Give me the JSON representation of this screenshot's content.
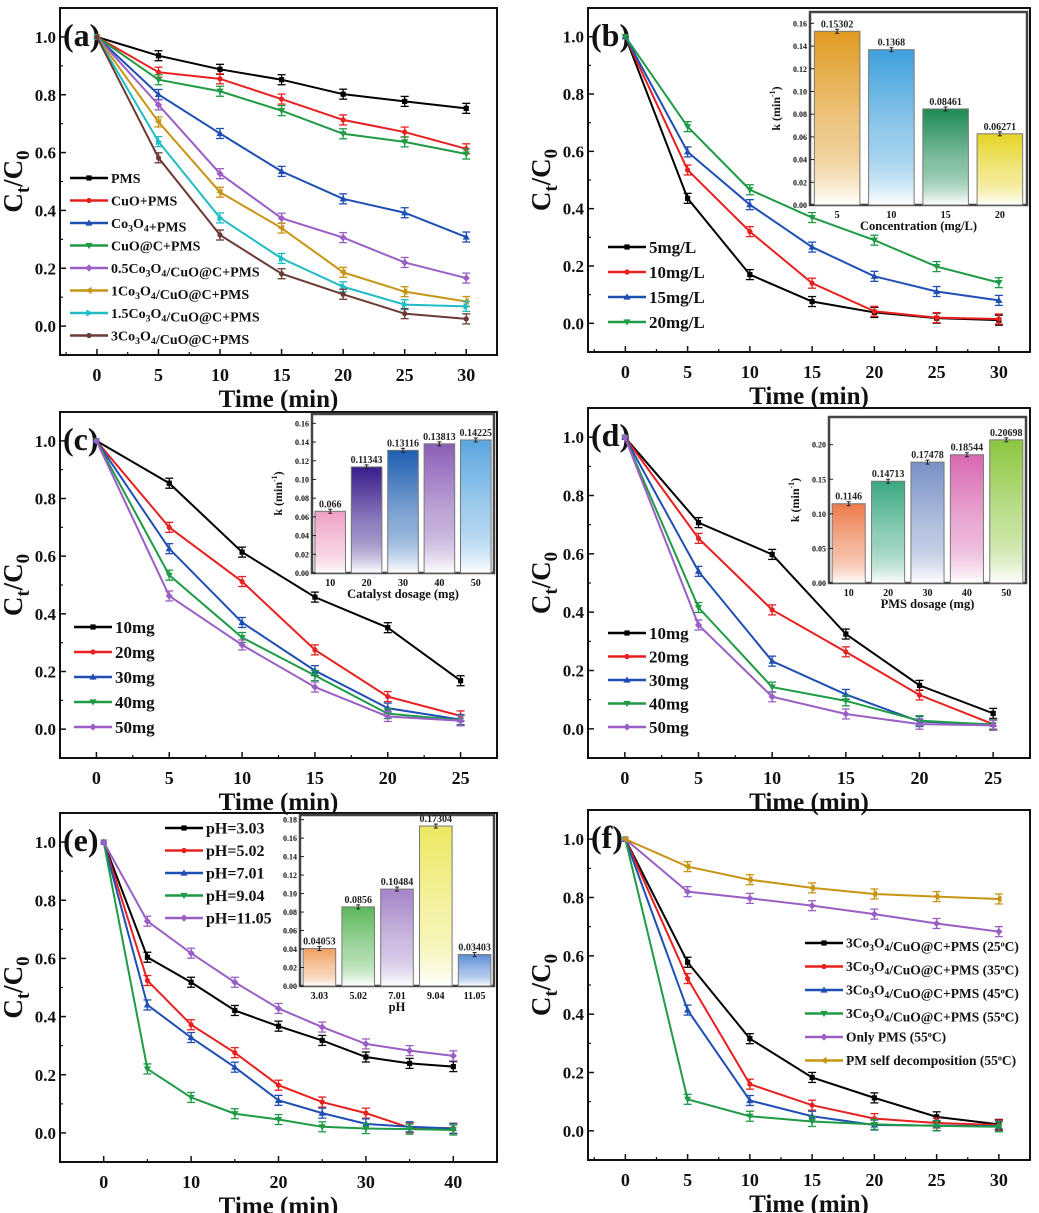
{
  "figure": {
    "panel_labels": [
      "(a)",
      "(b)",
      "(c)",
      "(d)",
      "(e)",
      "(f)"
    ]
  },
  "chart_data": [
    {
      "panel": "(a)",
      "type": "line",
      "title": "",
      "xlabel": "Time (min)",
      "ylabel": "Ct/C0",
      "xlim": [
        -3,
        32.5
      ],
      "ylim": [
        -0.1,
        1.1
      ],
      "xticks": [
        0,
        5,
        10,
        15,
        20,
        25,
        30
      ],
      "yticks": [
        0.0,
        0.2,
        0.4,
        0.6,
        0.8,
        1.0
      ],
      "x": [
        0,
        5,
        10,
        15,
        20,
        25,
        30
      ],
      "legend_position": "lower-left",
      "series": [
        {
          "name": "PMS",
          "color": "#000000",
          "marker": "square",
          "values": [
            1.0,
            0.935,
            0.888,
            0.852,
            0.802,
            0.777,
            0.753
          ]
        },
        {
          "name": "CuO+PMS",
          "color": "#e8201f",
          "marker": "circle",
          "values": [
            1.0,
            0.878,
            0.855,
            0.785,
            0.713,
            0.671,
            0.613
          ]
        },
        {
          "name": "Co3O4+PMS",
          "color": "#1f4fb4",
          "marker": "triangle-up",
          "values": [
            1.0,
            0.801,
            0.666,
            0.535,
            0.44,
            0.392,
            0.308
          ]
        },
        {
          "name": "CuO@C+PMS",
          "color": "#1f9a45",
          "marker": "triangle-down",
          "values": [
            1.0,
            0.852,
            0.812,
            0.745,
            0.665,
            0.637,
            0.595
          ]
        },
        {
          "name": "0.5Co3O4/CuO@C+PMS",
          "color": "#9a5fc4",
          "marker": "diamond",
          "values": [
            1.0,
            0.765,
            0.527,
            0.373,
            0.306,
            0.22,
            0.166
          ]
        },
        {
          "name": "1Co3O4/CuO@C+PMS",
          "color": "#c79414",
          "marker": "triangle-left",
          "values": [
            1.0,
            0.706,
            0.463,
            0.339,
            0.186,
            0.119,
            0.085
          ]
        },
        {
          "name": "1.5Co3O4/CuO@C+PMS",
          "color": "#1fbcc4",
          "marker": "triangle-right",
          "values": [
            1.0,
            0.638,
            0.374,
            0.234,
            0.136,
            0.074,
            0.068
          ]
        },
        {
          "name": "3Co3O4/CuO@C+PMS",
          "color": "#6b3a35",
          "marker": "hexagon",
          "values": [
            1.0,
            0.582,
            0.315,
            0.181,
            0.11,
            0.043,
            0.025
          ]
        }
      ]
    },
    {
      "panel": "(b)",
      "type": "line",
      "title": "",
      "xlabel": "Time (min)",
      "ylabel": "Ct/C0",
      "xlim": [
        -3,
        32.5
      ],
      "ylim": [
        -0.1,
        1.1
      ],
      "xticks": [
        0,
        5,
        10,
        15,
        20,
        25,
        30
      ],
      "yticks": [
        0.0,
        0.2,
        0.4,
        0.6,
        0.8,
        1.0
      ],
      "x": [
        0,
        5,
        10,
        15,
        20,
        25,
        30
      ],
      "legend_position": "lower-left",
      "series": [
        {
          "name": "5mg/L",
          "color": "#000000",
          "marker": "square",
          "values": [
            1.0,
            0.436,
            0.17,
            0.076,
            0.038,
            0.018,
            0.011
          ]
        },
        {
          "name": "10mg/L",
          "color": "#e8201f",
          "marker": "circle",
          "values": [
            1.0,
            0.535,
            0.32,
            0.14,
            0.042,
            0.02,
            0.015
          ]
        },
        {
          "name": "15mg/L",
          "color": "#1f4fb4",
          "marker": "triangle-up",
          "values": [
            1.0,
            0.598,
            0.414,
            0.266,
            0.164,
            0.111,
            0.08
          ]
        },
        {
          "name": "20mg/L",
          "color": "#1f9a45",
          "marker": "triangle-down",
          "values": [
            1.0,
            0.686,
            0.466,
            0.369,
            0.29,
            0.198,
            0.142
          ]
        }
      ],
      "inset": {
        "type": "bar",
        "xlabel": "Concentration (mg/L)",
        "ylabel": "k (min-1)",
        "ylim": [
          0,
          0.17
        ],
        "yticks": [
          "0.00",
          "0.02",
          "0.04",
          "0.06",
          "0.08",
          "0.10",
          "0.12",
          "0.14",
          "0.16"
        ],
        "categories": [
          "5",
          "10",
          "15",
          "20"
        ],
        "values": [
          0.15302,
          0.1368,
          0.08461,
          0.06271
        ],
        "labels": [
          "0.15302",
          "0.1368",
          "0.08461",
          "0.06271"
        ],
        "colors": [
          "#e09a22",
          "#3fa0dc",
          "#1e8a55",
          "#e6d426"
        ]
      }
    },
    {
      "panel": "(c)",
      "type": "line",
      "title": "",
      "xlabel": "Time (min)",
      "ylabel": "Ct/C0",
      "xlim": [
        -2.5,
        27.5
      ],
      "ylim": [
        -0.1,
        1.1
      ],
      "xticks": [
        0,
        5,
        10,
        15,
        20,
        25
      ],
      "yticks": [
        0.0,
        0.2,
        0.4,
        0.6,
        0.8,
        1.0
      ],
      "x": [
        0,
        5,
        10,
        15,
        20,
        25
      ],
      "legend_position": "lower-left",
      "series": [
        {
          "name": "10mg",
          "color": "#000000",
          "marker": "square",
          "values": [
            1.0,
            0.853,
            0.614,
            0.458,
            0.352,
            0.168
          ]
        },
        {
          "name": "20mg",
          "color": "#e8201f",
          "marker": "circle",
          "values": [
            1.0,
            0.7,
            0.512,
            0.275,
            0.113,
            0.046
          ]
        },
        {
          "name": "30mg",
          "color": "#1f4fb4",
          "marker": "triangle-up",
          "values": [
            1.0,
            0.626,
            0.37,
            0.203,
            0.073,
            0.033
          ]
        },
        {
          "name": "40mg",
          "color": "#1f9a45",
          "marker": "triangle-down",
          "values": [
            1.0,
            0.534,
            0.318,
            0.186,
            0.054,
            0.031
          ]
        },
        {
          "name": "50mg",
          "color": "#9a5fc4",
          "marker": "diamond",
          "values": [
            1.0,
            0.462,
            0.292,
            0.146,
            0.044,
            0.029
          ]
        }
      ],
      "inset": {
        "type": "bar",
        "xlabel": "Catalyst dosage (mg)",
        "ylabel": "k (min-1)",
        "ylim": [
          0,
          0.17
        ],
        "yticks": [
          "0.00",
          "0.02",
          "0.04",
          "0.06",
          "0.08",
          "0.10",
          "0.12",
          "0.14",
          "0.16"
        ],
        "categories": [
          "10",
          "20",
          "30",
          "40",
          "50"
        ],
        "values": [
          0.066,
          0.11343,
          0.13116,
          0.13813,
          0.14225
        ],
        "labels": [
          "0.066",
          "0.11343",
          "0.13116",
          "0.13813",
          "0.14225"
        ],
        "colors": [
          "#ee9fc4",
          "#3a1c8c",
          "#1e5fb0",
          "#8a5fb6",
          "#5aa6e0"
        ]
      }
    },
    {
      "panel": "(d)",
      "type": "line",
      "title": "",
      "xlabel": "Time (min)",
      "ylabel": "Ct/C0",
      "xlim": [
        -2.5,
        27.5
      ],
      "ylim": [
        -0.1,
        1.1
      ],
      "xticks": [
        0,
        5,
        10,
        15,
        20,
        25
      ],
      "yticks": [
        0.0,
        0.2,
        0.4,
        0.6,
        0.8,
        1.0
      ],
      "x": [
        0,
        5,
        10,
        15,
        20,
        25
      ],
      "legend_position": "lower-left",
      "series": [
        {
          "name": "10mg",
          "color": "#000000",
          "marker": "square",
          "values": [
            1.0,
            0.707,
            0.598,
            0.325,
            0.149,
            0.053
          ]
        },
        {
          "name": "20mg",
          "color": "#e8201f",
          "marker": "circle",
          "values": [
            1.0,
            0.653,
            0.408,
            0.264,
            0.116,
            0.016
          ]
        },
        {
          "name": "30mg",
          "color": "#1f4fb4",
          "marker": "triangle-up",
          "values": [
            1.0,
            0.54,
            0.232,
            0.118,
            0.025,
            0.015
          ]
        },
        {
          "name": "40mg",
          "color": "#1f9a45",
          "marker": "triangle-down",
          "values": [
            1.0,
            0.416,
            0.143,
            0.096,
            0.028,
            0.014
          ]
        },
        {
          "name": "50mg",
          "color": "#9a5fc4",
          "marker": "diamond",
          "values": [
            1.0,
            0.356,
            0.11,
            0.051,
            0.016,
            0.012
          ]
        }
      ],
      "inset": {
        "type": "bar",
        "xlabel": "PMS dosage (mg)",
        "ylabel": "k (min-1)",
        "ylim": [
          0,
          0.24
        ],
        "yticks": [
          "0.00",
          "0.05",
          "0.10",
          "0.15",
          "0.20"
        ],
        "categories": [
          "10",
          "20",
          "30",
          "40",
          "50"
        ],
        "values": [
          0.1146,
          0.14713,
          0.17478,
          0.18544,
          0.20698
        ],
        "labels": [
          "0.1146",
          "0.14713",
          "0.17478",
          "0.18544",
          "0.20698"
        ],
        "colors": [
          "#ec7a4a",
          "#3aa880",
          "#7890c6",
          "#d868b0",
          "#8cc63e"
        ]
      }
    },
    {
      "panel": "(e)",
      "type": "line",
      "title": "",
      "xlabel": "Time (min)",
      "ylabel": "Ct/C0",
      "xlim": [
        -5,
        45
      ],
      "ylim": [
        -0.1,
        1.1
      ],
      "xticks": [
        0,
        10,
        20,
        30,
        40
      ],
      "yticks": [
        0.0,
        0.2,
        0.4,
        0.6,
        0.8,
        1.0
      ],
      "x": [
        0,
        5,
        10,
        15,
        20,
        25,
        30,
        35,
        40
      ],
      "legend_position": "top-center",
      "series": [
        {
          "name": "pH=3.03",
          "color": "#000000",
          "marker": "square",
          "values": [
            1.0,
            0.604,
            0.518,
            0.421,
            0.367,
            0.318,
            0.261,
            0.239,
            0.228
          ]
        },
        {
          "name": "pH=5.02",
          "color": "#e8201f",
          "marker": "circle",
          "values": [
            1.0,
            0.524,
            0.372,
            0.276,
            0.164,
            0.106,
            0.068,
            0.018,
            0.016
          ]
        },
        {
          "name": "pH=7.01",
          "color": "#1f4fb4",
          "marker": "triangle-up",
          "values": [
            1.0,
            0.44,
            0.328,
            0.226,
            0.112,
            0.068,
            0.031,
            0.021,
            0.015
          ]
        },
        {
          "name": "pH=9.04",
          "color": "#1f9a45",
          "marker": "triangle-down",
          "values": [
            1.0,
            0.22,
            0.122,
            0.066,
            0.046,
            0.021,
            0.015,
            0.013,
            0.01
          ]
        },
        {
          "name": "pH=11.05",
          "color": "#9a5fc4",
          "marker": "diamond",
          "values": [
            1.0,
            0.728,
            0.618,
            0.518,
            0.428,
            0.364,
            0.306,
            0.283,
            0.265
          ]
        }
      ],
      "inset": {
        "type": "bar",
        "xlabel": "pH",
        "ylabel": "",
        "ylim": [
          0,
          0.185
        ],
        "yticks": [
          "0.00",
          "0.02",
          "0.04",
          "0.06",
          "0.08",
          "0.10",
          "0.12",
          "0.14",
          "0.16",
          "0.18"
        ],
        "categories": [
          "3.03",
          "5.02",
          "7.01",
          "9.04",
          "11.05"
        ],
        "values": [
          0.04053,
          0.0856,
          0.10484,
          0.17304,
          0.03403
        ],
        "labels": [
          "0.04053",
          "0.0856",
          "0.10484",
          "0.17304",
          "0.03403"
        ],
        "colors": [
          "#f0a060",
          "#5cb85c",
          "#a484c8",
          "#ece860",
          "#5c8ed6"
        ]
      }
    },
    {
      "panel": "(f)",
      "type": "line",
      "title": "",
      "xlabel": "Time (min)",
      "ylabel": "Ct/C0",
      "xlim": [
        -3,
        32.5
      ],
      "ylim": [
        -0.1,
        1.1
      ],
      "xticks": [
        0,
        5,
        10,
        15,
        20,
        25,
        30
      ],
      "yticks": [
        0.0,
        0.2,
        0.4,
        0.6,
        0.8,
        1.0
      ],
      "x": [
        0,
        5,
        10,
        15,
        20,
        25,
        30
      ],
      "legend_position": "right",
      "series": [
        {
          "name": "3Co3O4/CuO@C+PMS (25oC)",
          "color": "#000000",
          "marker": "square",
          "values": [
            1.0,
            0.578,
            0.316,
            0.183,
            0.113,
            0.048,
            0.022
          ]
        },
        {
          "name": "3Co3O4/CuO@C+PMS (35oC)",
          "color": "#e8201f",
          "marker": "circle",
          "values": [
            1.0,
            0.522,
            0.16,
            0.088,
            0.042,
            0.027,
            0.02
          ]
        },
        {
          "name": "3Co3O4/CuO@C+PMS (45oC)",
          "color": "#1f4fb4",
          "marker": "triangle-up",
          "values": [
            1.0,
            0.414,
            0.104,
            0.05,
            0.02,
            0.018,
            0.016
          ]
        },
        {
          "name": "3Co3O4/CuO@C+PMS (55oC)",
          "color": "#1f9a45",
          "marker": "triangle-down",
          "values": [
            1.0,
            0.108,
            0.05,
            0.032,
            0.022,
            0.017,
            0.014
          ]
        },
        {
          "name": "Only PMS (55oC)",
          "color": "#9a5fc4",
          "marker": "diamond",
          "values": [
            1.0,
            0.82,
            0.797,
            0.772,
            0.743,
            0.711,
            0.683
          ]
        },
        {
          "name": "PM self decomposition (55oC)",
          "color": "#c79414",
          "marker": "triangle-left",
          "values": [
            1.0,
            0.906,
            0.861,
            0.833,
            0.812,
            0.803,
            0.795
          ]
        }
      ]
    }
  ]
}
